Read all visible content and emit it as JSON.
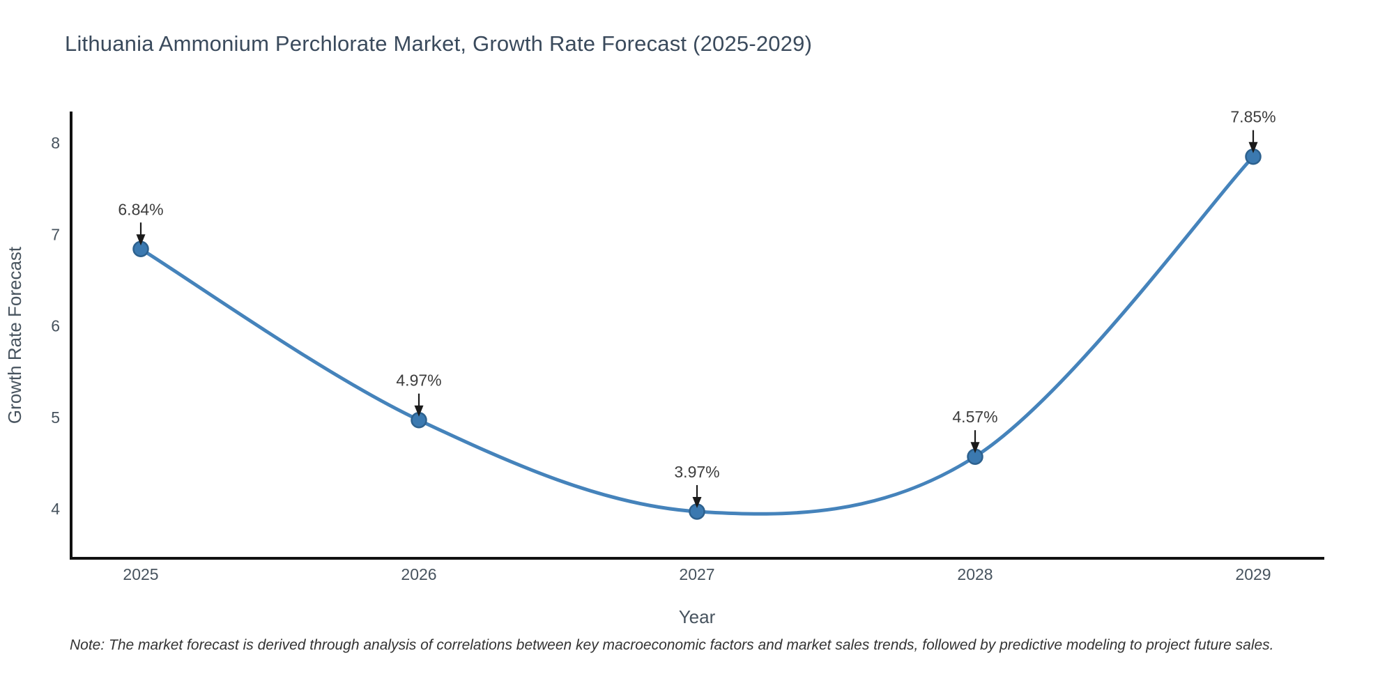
{
  "page": {
    "note": "Note: The market forecast is derived through analysis of correlations between key macroeconomic factors and market sales trends, followed by predictive modeling to project future sales."
  },
  "chart_data": {
    "type": "line",
    "title": "Lithuania Ammonium Perchlorate Market, Growth Rate Forecast (2025-2029)",
    "categories": [
      "2025",
      "2026",
      "2027",
      "2028",
      "2029"
    ],
    "x": [
      2025,
      2026,
      2027,
      2028,
      2029
    ],
    "series": [
      {
        "name": "Growth Rate Forecast",
        "values": [
          6.84,
          4.97,
          3.97,
          4.57,
          7.85
        ],
        "point_labels": [
          "6.84%",
          "4.97%",
          "3.97%",
          "4.57%",
          "7.85%"
        ]
      }
    ],
    "xlabel": "Year",
    "ylabel": "Growth Rate Forecast",
    "yticks": [
      4,
      5,
      6,
      7,
      8
    ],
    "ylim": [
      3.45,
      8.35
    ],
    "line_shape": "spline",
    "grid": false,
    "legend_position": "none",
    "annotations_have_arrows": true,
    "colors": {
      "line": "#4583bb",
      "marker_fill": "#3b79b0",
      "marker_edge": "#2d618e",
      "axis": "#111111",
      "title_text": "#3a4a5c",
      "tick_text": "#47535e",
      "axis_title_text": "#47535e",
      "annotation_text": "#3d3d3d",
      "arrow": "#1a1a1a",
      "note_text": "#333333",
      "background": "#ffffff"
    }
  }
}
